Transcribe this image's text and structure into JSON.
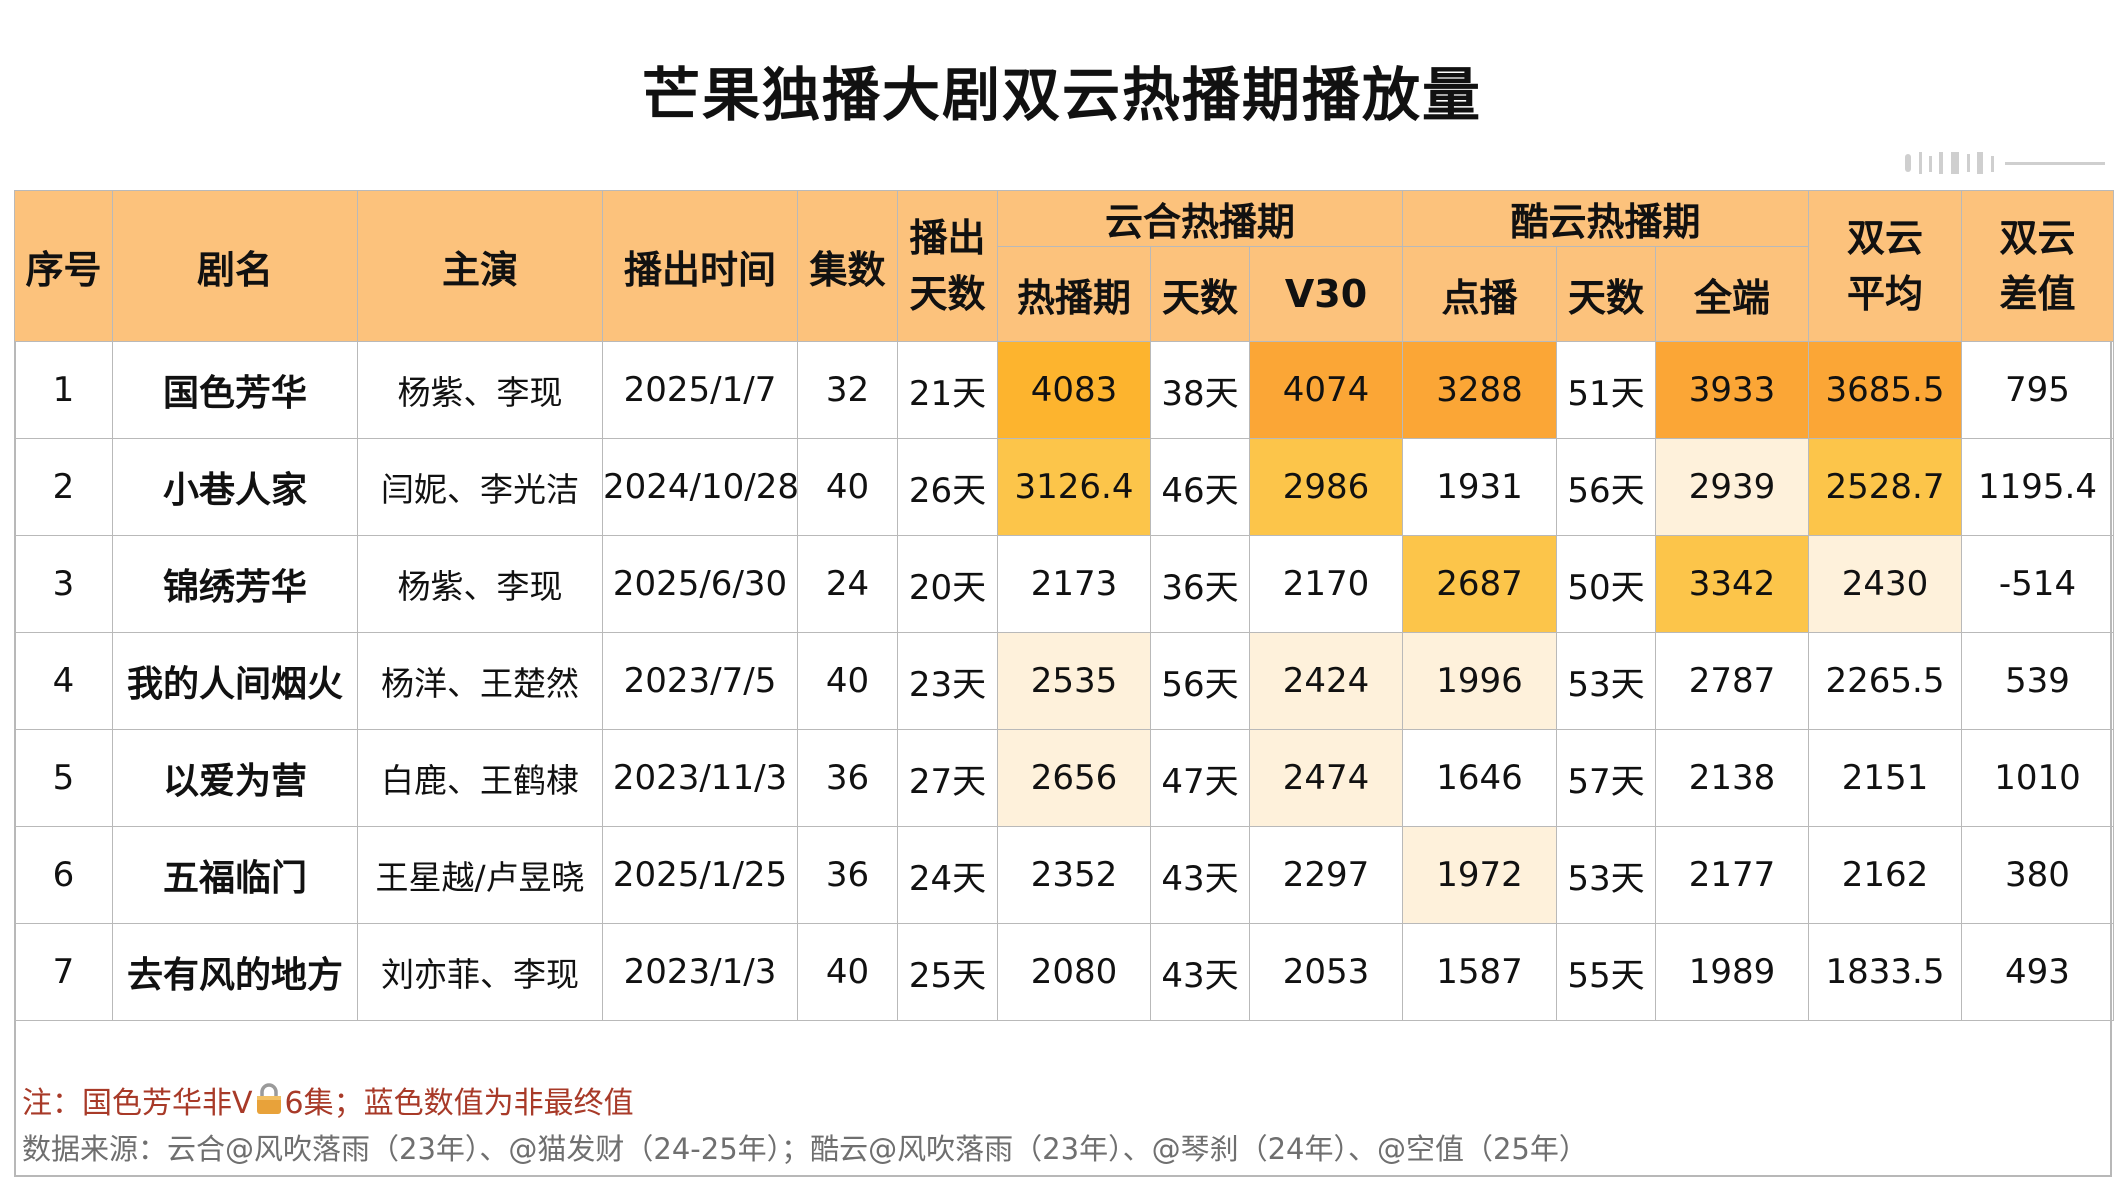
{
  "title": "芒果独播大剧双云热播期播放量",
  "headers": {
    "index": "序号",
    "name": "剧名",
    "cast": "主演",
    "air_date": "播出时间",
    "episodes": "集数",
    "days_aired_line1": "播出",
    "days_aired_line2": "天数",
    "yunhe_group": "云合热播期",
    "yunhe_hot": "热播期",
    "yunhe_days": "天数",
    "yunhe_v30": "V30",
    "kuyun_group": "酷云热播期",
    "kuyun_vod": "点播",
    "kuyun_days": "天数",
    "kuyun_all": "全端",
    "avg_line1": "双云",
    "avg_line2": "平均",
    "diff_line1": "双云",
    "diff_line2": "差值"
  },
  "rows": [
    {
      "index": "1",
      "name": "国色芳华",
      "cast": "杨紫、李现",
      "air_date": "2025/1/7",
      "episodes": "32",
      "days": "21天",
      "yunhe_hot": "4083",
      "yunhe_days": "38天",
      "yunhe_v30": "4074",
      "kuyun_vod": "3288",
      "kuyun_days": "51天",
      "kuyun_all": "3933",
      "avg": "3685.5",
      "diff": "795"
    },
    {
      "index": "2",
      "name": "小巷人家",
      "cast": "闫妮、李光洁",
      "air_date": "2024/10/28",
      "episodes": "40",
      "days": "26天",
      "yunhe_hot": "3126.4",
      "yunhe_days": "46天",
      "yunhe_v30": "2986",
      "kuyun_vod": "1931",
      "kuyun_days": "56天",
      "kuyun_all": "2939",
      "avg": "2528.7",
      "diff": "1195.4"
    },
    {
      "index": "3",
      "name": "锦绣芳华",
      "cast": "杨紫、李现",
      "air_date": "2025/6/30",
      "episodes": "24",
      "days": "20天",
      "yunhe_hot": "2173",
      "yunhe_days": "36天",
      "yunhe_v30": "2170",
      "kuyun_vod": "2687",
      "kuyun_days": "50天",
      "kuyun_all": "3342",
      "avg": "2430",
      "diff": "-514"
    },
    {
      "index": "4",
      "name": "我的人间烟火",
      "cast": "杨洋、王楚然",
      "air_date": "2023/7/5",
      "episodes": "40",
      "days": "23天",
      "yunhe_hot": "2535",
      "yunhe_days": "56天",
      "yunhe_v30": "2424",
      "kuyun_vod": "1996",
      "kuyun_days": "53天",
      "kuyun_all": "2787",
      "avg": "2265.5",
      "diff": "539"
    },
    {
      "index": "5",
      "name": "以爱为营",
      "cast": "白鹿、王鹤棣",
      "air_date": "2023/11/3",
      "episodes": "36",
      "days": "27天",
      "yunhe_hot": "2656",
      "yunhe_days": "47天",
      "yunhe_v30": "2474",
      "kuyun_vod": "1646",
      "kuyun_days": "57天",
      "kuyun_all": "2138",
      "avg": "2151",
      "diff": "1010"
    },
    {
      "index": "6",
      "name": "五福临门",
      "cast": "王星越/卢昱晓",
      "air_date": "2025/1/25",
      "episodes": "36",
      "days": "24天",
      "yunhe_hot": "2352",
      "yunhe_days": "43天",
      "yunhe_v30": "2297",
      "kuyun_vod": "1972",
      "kuyun_days": "53天",
      "kuyun_all": "2177",
      "avg": "2162",
      "diff": "380"
    },
    {
      "index": "7",
      "name": "去有风的地方",
      "cast": "刘亦菲、李现",
      "air_date": "2023/1/3",
      "episodes": "40",
      "days": "25天",
      "yunhe_hot": "2080",
      "yunhe_days": "43天",
      "yunhe_v30": "2053",
      "kuyun_vod": "1587",
      "kuyun_days": "55天",
      "kuyun_all": "1989",
      "avg": "1833.5",
      "diff": "493"
    }
  ],
  "note": {
    "before_lock": "注：国色芳华非V",
    "after_lock": "6集；蓝色数值为非最终值"
  },
  "source": "数据来源：云合@风吹落雨（23年）、@猫发财（24-25年）；酷云@风吹落雨（23年）、@琴刹（24年）、@空值（25年）",
  "colors": {
    "header_bg": "#fcc27c",
    "heat_1": "#fba636",
    "heat_2": "#fdb42e",
    "heat_3": "#fcc54a",
    "heat_4": "#fef1db",
    "non_final_value": "#6c96c8",
    "negative_value": "#d9341c",
    "note_text": "#a83a28"
  },
  "icons": {
    "note_icon": "lock-icon"
  }
}
